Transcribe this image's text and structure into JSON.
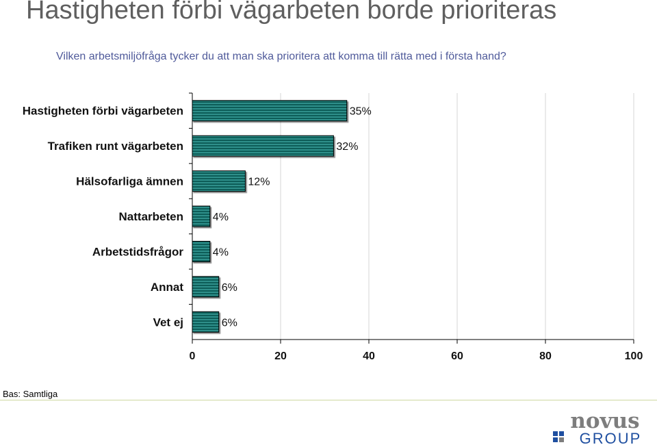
{
  "header": {
    "title": "Hastigheten förbi vägarbeten borde prioriteras",
    "subtitle": "Vilken arbetsmiljöfråga tycker du att man ska prioritera att komma till rätta med i första hand?"
  },
  "chart_data": {
    "type": "bar",
    "orientation": "horizontal",
    "categories": [
      "Hastigheten förbi vägarbeten",
      "Trafiken runt vägarbeten",
      "Hälsofarliga ämnen",
      "Nattarbeten",
      "Arbetstidsfrågor",
      "Annat",
      "Vet ej"
    ],
    "values": [
      35,
      32,
      12,
      4,
      4,
      6,
      6
    ],
    "value_labels": [
      "35%",
      "32%",
      "12%",
      "4%",
      "4%",
      "6%",
      "6%"
    ],
    "xlim": [
      0,
      100
    ],
    "xticks": [
      "0",
      "20",
      "40",
      "60",
      "80",
      "100"
    ],
    "grid": "vertical",
    "bar_color": "#2e8f8a"
  },
  "footer": {
    "base_note": "Bas: Samtliga",
    "logo_text_top": "novus",
    "logo_text_bottom": "GROUP"
  },
  "colors": {
    "title": "#5f5f5f",
    "subtitle": "#4f5a9a",
    "logo_gray": "#7d7d7d",
    "logo_blue": "#1f4fa0"
  }
}
